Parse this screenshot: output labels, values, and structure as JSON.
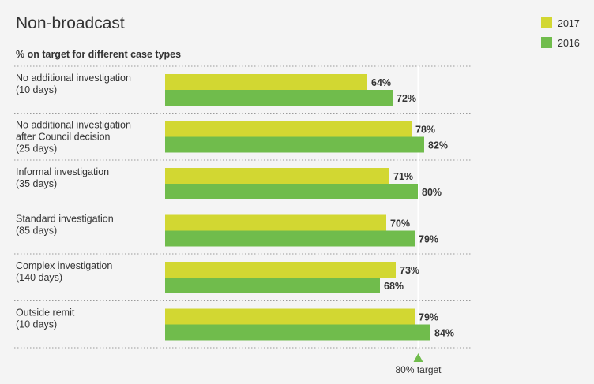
{
  "chart_data": {
    "type": "bar",
    "orientation": "horizontal",
    "title": "Non-broadcast",
    "subtitle": "% on target for different case types",
    "categories": [
      [
        "No additional investigation",
        "(10 days)"
      ],
      [
        "No additional investigation",
        "after Council decision",
        "(25 days)"
      ],
      [
        "Informal investigation",
        "(35 days)"
      ],
      [
        "Standard investigation",
        "(85 days)"
      ],
      [
        "Complex investigation",
        "(140 days)"
      ],
      [
        "Outside remit",
        "(10 days)"
      ]
    ],
    "series": [
      {
        "name": "2017",
        "color": "#d2d732",
        "values": [
          64,
          78,
          71,
          70,
          73,
          79
        ],
        "labels": [
          "64%",
          "78%",
          "71%",
          "70%",
          "73%",
          "79%"
        ]
      },
      {
        "name": "2016",
        "color": "#70bc4c",
        "values": [
          72,
          82,
          80,
          79,
          68,
          84
        ],
        "labels": [
          "72%",
          "82%",
          "80%",
          "79%",
          "68%",
          "84%"
        ]
      }
    ],
    "xlim": [
      0,
      100
    ],
    "target": {
      "value": 80,
      "label": "80% target"
    },
    "legend": {
      "position": "top-right"
    },
    "grid": false
  }
}
